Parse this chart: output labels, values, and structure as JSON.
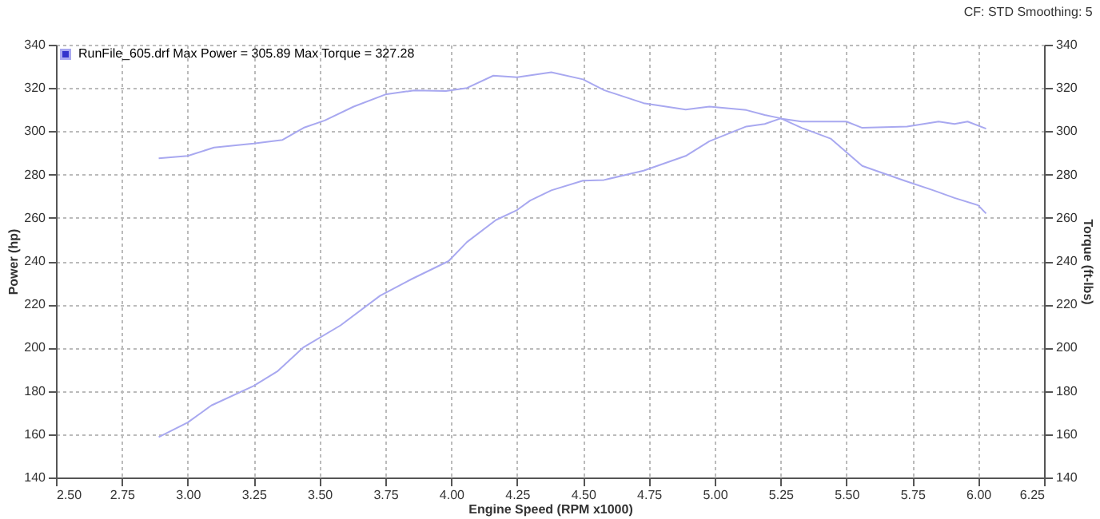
{
  "chart_data": {
    "type": "line",
    "xlabel": "Engine Speed (RPM x1000)",
    "ylabel": "Power (hp)",
    "y2label": "Torque (ft-lbs)",
    "annotations": [
      "CF: STD  Smoothing: 5"
    ],
    "xlim": [
      2.5,
      6.25
    ],
    "xticks": [
      {
        "value": 2.5,
        "label": "2.50"
      },
      {
        "value": 2.75,
        "label": "2.75"
      },
      {
        "value": 3,
        "label": "3.00"
      },
      {
        "value": 3.25,
        "label": "3.25"
      },
      {
        "value": 3.5,
        "label": "3.50"
      },
      {
        "value": 3.75,
        "label": "3.75"
      },
      {
        "value": 4,
        "label": "4.00"
      },
      {
        "value": 4.25,
        "label": "4.25"
      },
      {
        "value": 4.5,
        "label": "4.50"
      },
      {
        "value": 4.75,
        "label": "4.75"
      },
      {
        "value": 5,
        "label": "5.00"
      },
      {
        "value": 5.25,
        "label": "5.25"
      },
      {
        "value": 5.5,
        "label": "5.50"
      },
      {
        "value": 5.75,
        "label": "5.75"
      },
      {
        "value": 6,
        "label": "6.00"
      },
      {
        "value": 6.25,
        "label": "6.25"
      }
    ],
    "ylim": [
      140,
      340
    ],
    "yticks": [
      140,
      160,
      180,
      200,
      220,
      240,
      260,
      280,
      300,
      320,
      340
    ],
    "y2lim": [
      140,
      340
    ],
    "y2ticks": [
      140,
      160,
      180,
      200,
      220,
      240,
      260,
      280,
      300,
      320,
      340
    ],
    "grid": true,
    "legend": "top left",
    "series": [
      {
        "name": "RunFile_605.drf Max Power = 305.89    Max Torque = 327.28",
        "color": "#a8a8f0",
        "x": [
          2.89,
          3.0,
          3.09,
          3.25,
          3.34,
          3.44,
          3.58,
          3.73,
          3.85,
          3.99,
          4.06,
          4.17,
          4.25,
          4.3,
          4.38,
          4.5,
          4.58,
          4.73,
          4.89,
          4.98,
          5.12,
          5.19,
          5.25,
          5.33,
          5.5,
          5.56,
          5.73,
          5.85,
          5.91,
          5.96,
          6.03
        ],
        "values": [
          158.7,
          165.4,
          173.3,
          182.3,
          189,
          200.2,
          210.3,
          224,
          231.7,
          240,
          248.8,
          259,
          263.6,
          268,
          272.7,
          277.2,
          277.5,
          281.8,
          288.6,
          295.4,
          302.2,
          303.4,
          305.9,
          304.5,
          304.5,
          301.6,
          302.2,
          304.5,
          303.4,
          304.5,
          301.2
        ]
      },
      {
        "axis": "y2",
        "color": "#a8a8f0",
        "x": [
          2.89,
          3.0,
          3.1,
          3.25,
          3.36,
          3.44,
          3.52,
          3.63,
          3.75,
          3.86,
          3.98,
          4.06,
          4.16,
          4.25,
          4.38,
          4.5,
          4.58,
          4.73,
          4.89,
          4.98,
          5.12,
          5.19,
          5.25,
          5.33,
          5.44,
          5.56,
          5.72,
          5.83,
          5.91,
          6.0,
          6.03
        ],
        "values": [
          287.5,
          288.6,
          292.5,
          294.3,
          296,
          301.6,
          305,
          311.4,
          317,
          318.9,
          318.6,
          320,
          325.7,
          325,
          327.3,
          324,
          319,
          313,
          310,
          311.4,
          309.8,
          307.5,
          306,
          301.6,
          296.6,
          284,
          277.2,
          272.7,
          269.2,
          265.8,
          262
        ]
      }
    ]
  }
}
